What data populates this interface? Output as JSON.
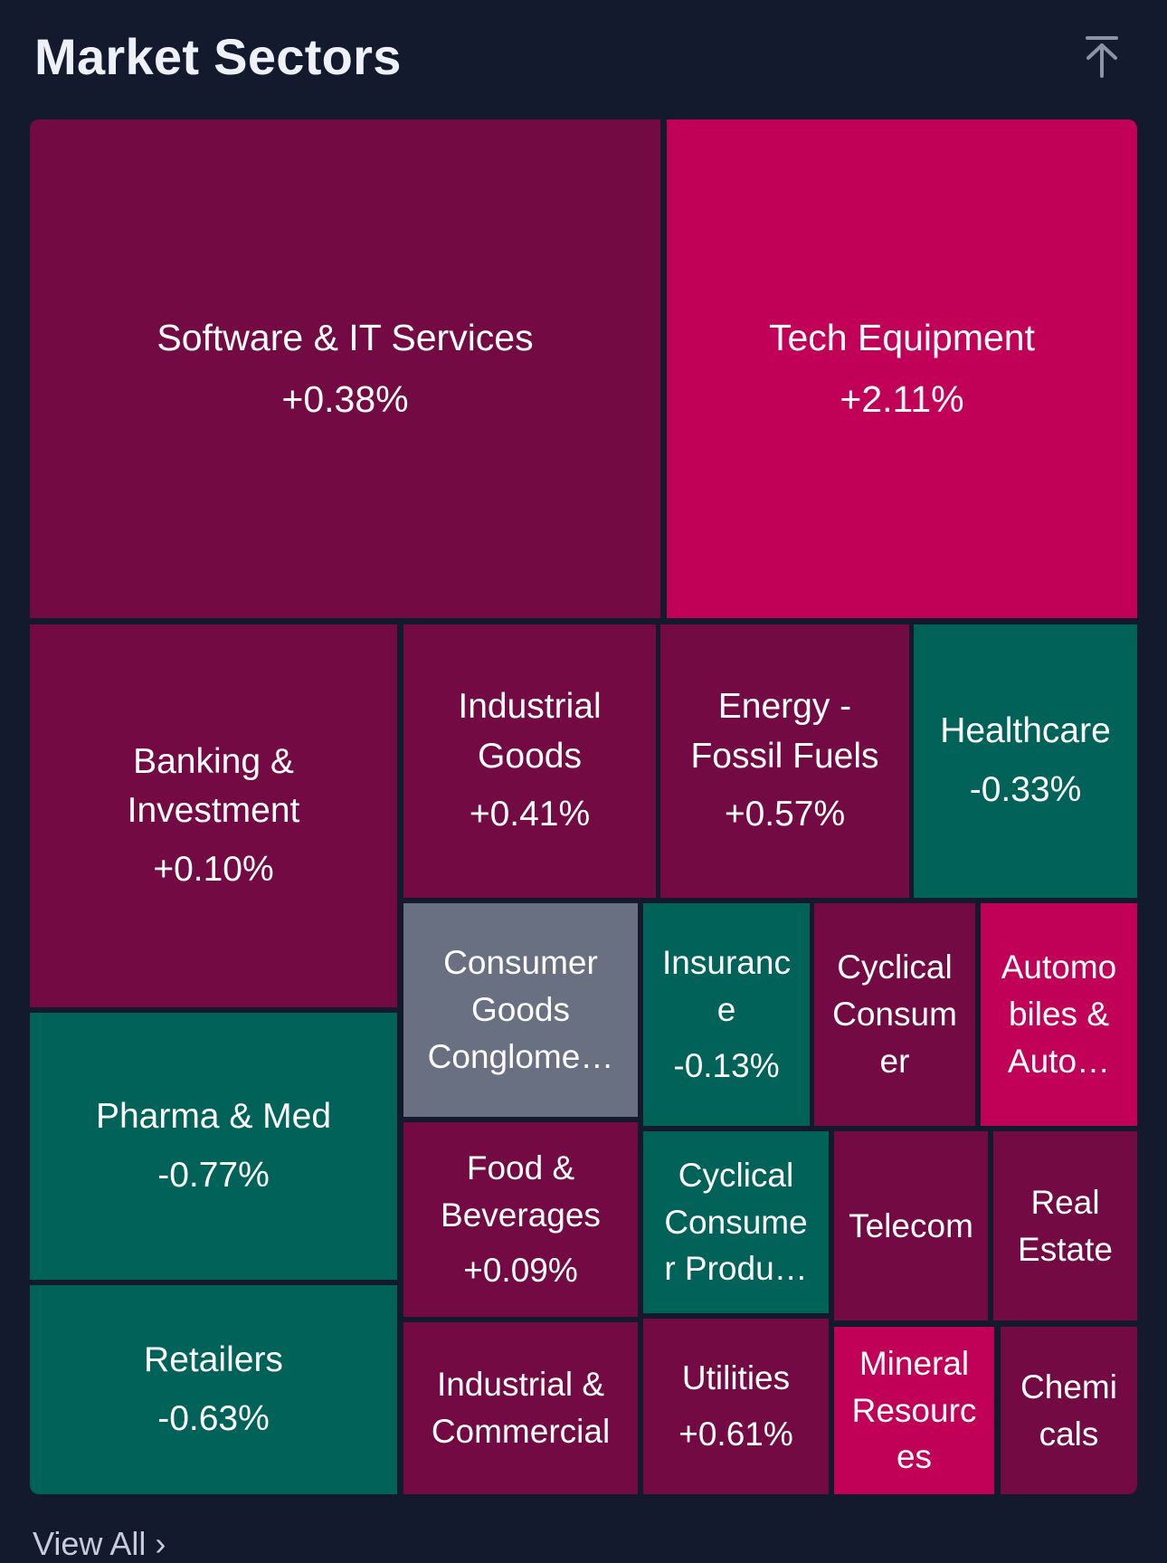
{
  "header": {
    "title": "Market Sectors",
    "collapse_icon": "arrow-up-to-line-icon"
  },
  "colors": {
    "background": "#131a2e",
    "slight_gain": "#730a43",
    "strong_gain": "#c10057",
    "loss": "#016259",
    "neutral": "#687081"
  },
  "sectors": [
    {
      "name": "Software & IT Services",
      "change": "+0.38%"
    },
    {
      "name": "Tech Equipment",
      "change": "+2.11%"
    },
    {
      "name": "Banking &\nInvestment",
      "change": "+0.10%"
    },
    {
      "name": "Industrial\nGoods",
      "change": "+0.41%"
    },
    {
      "name": "Energy -\nFossil Fuels",
      "change": "+0.57%"
    },
    {
      "name": "Healthcare",
      "change": "-0.33%"
    },
    {
      "name": "Pharma & Med",
      "change": "-0.77%"
    },
    {
      "name": "Consumer\nGoods\nConglome…",
      "change": ""
    },
    {
      "name": "Insuranc\ne",
      "change": "-0.13%"
    },
    {
      "name": "Cyclical\nConsum\ner",
      "change": ""
    },
    {
      "name": "Automo\nbiles &\nAuto…",
      "change": ""
    },
    {
      "name": "Food &\nBeverages",
      "change": "+0.09%"
    },
    {
      "name": "Cyclical\nConsume\nr Produ…",
      "change": ""
    },
    {
      "name": "Telecom",
      "change": ""
    },
    {
      "name": "Real\nEstate",
      "change": ""
    },
    {
      "name": "Retailers",
      "change": "-0.63%"
    },
    {
      "name": "Industrial &\nCommercial",
      "change": ""
    },
    {
      "name": "Utilities",
      "change": "+0.61%"
    },
    {
      "name": "Mineral\nResourc\nes",
      "change": ""
    },
    {
      "name": "Chemi\ncals",
      "change": ""
    }
  ],
  "footer": {
    "view_all": "View All"
  }
}
